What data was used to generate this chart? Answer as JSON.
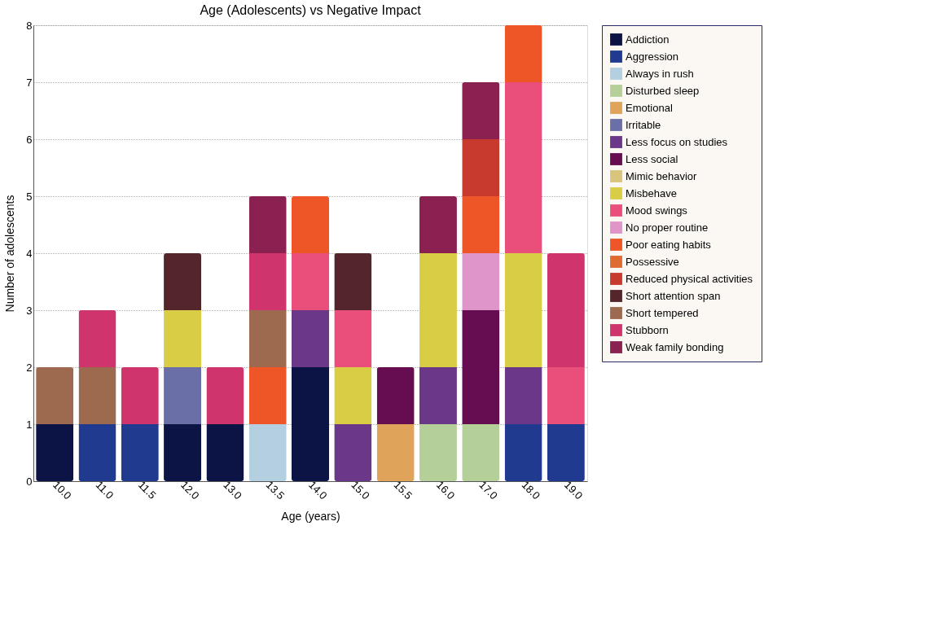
{
  "chart_data": {
    "type": "bar",
    "stacked": true,
    "title": "Age (Adolescents) vs Negative Impact",
    "xlabel": "Age (years)",
    "ylabel": "Number of adolescents",
    "categories": [
      "10.0",
      "11.0",
      "11.5",
      "12.0",
      "13.0",
      "13.5",
      "14.0",
      "15.0",
      "15.5",
      "16.0",
      "17.0",
      "18.0",
      "19.0"
    ],
    "series": [
      {
        "name": "Addiction",
        "color": "#0c1445",
        "values": [
          1,
          null,
          null,
          1,
          1,
          null,
          2,
          null,
          null,
          null,
          null,
          null,
          null
        ]
      },
      {
        "name": "Aggression",
        "color": "#1f3a8f",
        "values": [
          null,
          1,
          1,
          null,
          null,
          null,
          null,
          null,
          null,
          null,
          null,
          1,
          1
        ]
      },
      {
        "name": "Always in rush",
        "color": "#b3cfe0",
        "values": [
          null,
          null,
          null,
          null,
          null,
          1,
          null,
          null,
          null,
          null,
          null,
          null,
          null
        ]
      },
      {
        "name": "Disturbed sleep",
        "color": "#b5cf98",
        "values": [
          null,
          null,
          null,
          null,
          null,
          null,
          null,
          null,
          null,
          1,
          1,
          null,
          null
        ]
      },
      {
        "name": "Emotional",
        "color": "#e0a35a",
        "values": [
          null,
          null,
          null,
          null,
          null,
          null,
          null,
          null,
          1,
          null,
          null,
          null,
          null
        ]
      },
      {
        "name": "Irritable",
        "color": "#6b6fa8",
        "values": [
          null,
          null,
          null,
          1,
          null,
          null,
          null,
          null,
          null,
          null,
          null,
          null,
          null
        ]
      },
      {
        "name": "Less focus on studies",
        "color": "#6b3788",
        "values": [
          null,
          null,
          null,
          null,
          null,
          null,
          1,
          1,
          null,
          1,
          null,
          1,
          null
        ]
      },
      {
        "name": "Less social",
        "color": "#650d50",
        "values": [
          null,
          null,
          null,
          null,
          null,
          null,
          null,
          null,
          1,
          null,
          2,
          null,
          null
        ]
      },
      {
        "name": "Mimic behavior",
        "color": "#d8c47c",
        "values": [
          null,
          null,
          null,
          null,
          null,
          null,
          null,
          null,
          null,
          null,
          null,
          null,
          null
        ]
      },
      {
        "name": "Misbehave",
        "color": "#d8cd44",
        "values": [
          null,
          null,
          null,
          1,
          null,
          null,
          null,
          1,
          null,
          2,
          null,
          2,
          null
        ]
      },
      {
        "name": "Mood swings",
        "color": "#e94f7a",
        "values": [
          null,
          null,
          null,
          null,
          null,
          null,
          1,
          1,
          null,
          null,
          null,
          3,
          1
        ]
      },
      {
        "name": "No proper routine",
        "color": "#e095c8",
        "values": [
          null,
          null,
          null,
          null,
          null,
          null,
          null,
          null,
          null,
          null,
          1,
          null,
          null
        ]
      },
      {
        "name": "Poor eating habits",
        "color": "#ee5628",
        "values": [
          null,
          null,
          null,
          null,
          null,
          1,
          1,
          null,
          null,
          null,
          1,
          1,
          null
        ]
      },
      {
        "name": "Possessive",
        "color": "#df6b30",
        "values": [
          null,
          null,
          null,
          null,
          null,
          null,
          null,
          null,
          null,
          null,
          null,
          null,
          null
        ]
      },
      {
        "name": "Reduced physical activities",
        "color": "#c83a2e",
        "values": [
          null,
          null,
          null,
          null,
          null,
          null,
          null,
          null,
          null,
          null,
          1,
          null,
          null
        ]
      },
      {
        "name": "Short attention span",
        "color": "#54262b",
        "values": [
          null,
          null,
          null,
          1,
          null,
          null,
          null,
          1,
          null,
          null,
          null,
          null,
          null
        ]
      },
      {
        "name": "Short tempered",
        "color": "#9e6a4f",
        "values": [
          1,
          1,
          null,
          null,
          null,
          1,
          null,
          null,
          null,
          null,
          null,
          null,
          null
        ]
      },
      {
        "name": "Stubborn",
        "color": "#d0346c",
        "values": [
          null,
          1,
          1,
          null,
          1,
          1,
          null,
          null,
          null,
          null,
          null,
          null,
          2
        ]
      },
      {
        "name": "Weak family bonding",
        "color": "#8a2150",
        "values": [
          null,
          null,
          null,
          null,
          null,
          1,
          null,
          null,
          null,
          1,
          1,
          null,
          null
        ]
      }
    ],
    "ylim": [
      0,
      8
    ],
    "yticks": [
      0,
      1,
      2,
      3,
      4,
      5,
      6,
      7,
      8
    ],
    "grid": "y",
    "legend": "right"
  }
}
